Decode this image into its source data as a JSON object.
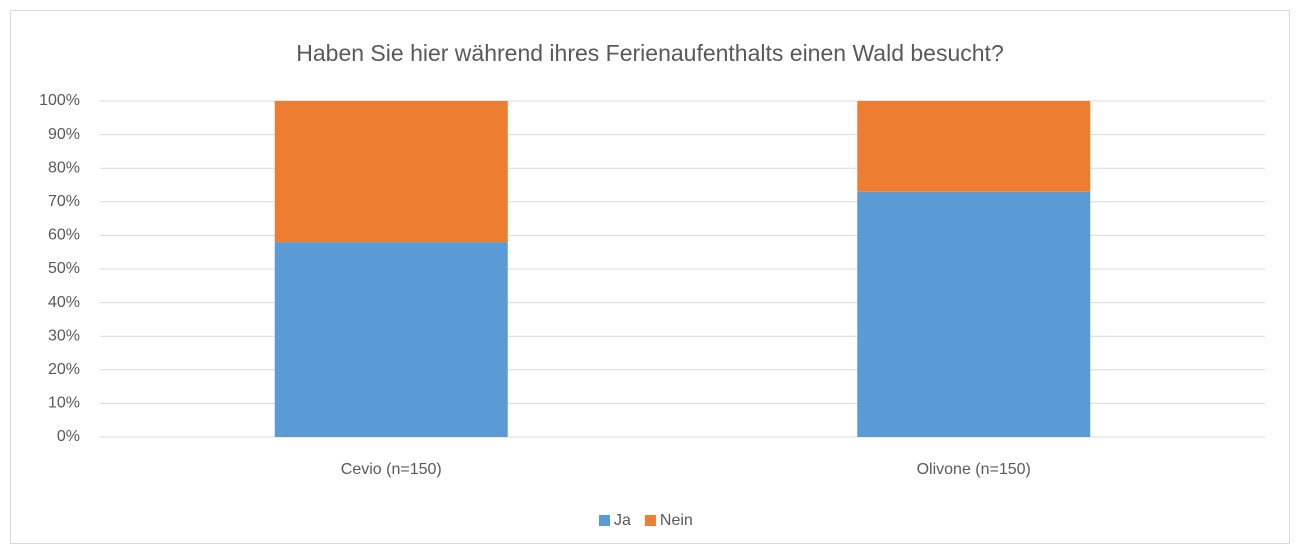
{
  "chart_data": {
    "type": "bar",
    "stacked": true,
    "title": "Haben Sie hier während ihres Ferienaufenthalts einen Wald besucht?",
    "categories": [
      "Cevio (n=150)",
      "Olivone (n=150)"
    ],
    "series": [
      {
        "name": "Ja",
        "color": "#5b9bd5",
        "values": [
          58,
          73
        ]
      },
      {
        "name": "Nein",
        "color": "#ed7d31",
        "values": [
          42,
          27
        ]
      }
    ],
    "ylim": [
      0,
      100
    ],
    "yticks": [
      {
        "value": 0,
        "label": "0%"
      },
      {
        "value": 10,
        "label": "10%"
      },
      {
        "value": 20,
        "label": "20%"
      },
      {
        "value": 30,
        "label": "30%"
      },
      {
        "value": 40,
        "label": "40%"
      },
      {
        "value": 50,
        "label": "50%"
      },
      {
        "value": 60,
        "label": "60%"
      },
      {
        "value": 70,
        "label": "70%"
      },
      {
        "value": 80,
        "label": "80%"
      },
      {
        "value": 90,
        "label": "90%"
      },
      {
        "value": 100,
        "label": "100%"
      }
    ],
    "grid": true,
    "legend": "bottom"
  }
}
